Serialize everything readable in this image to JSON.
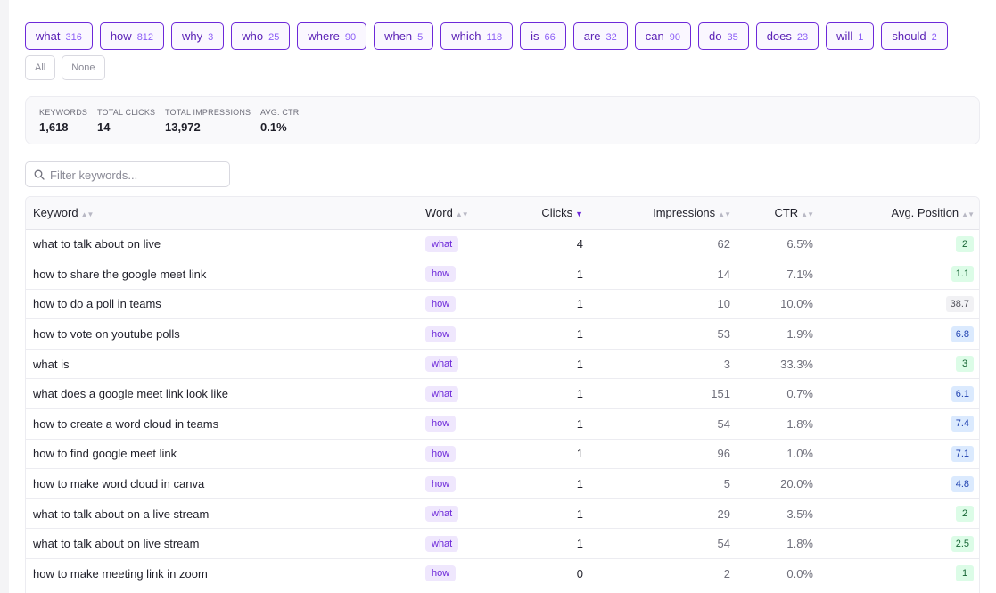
{
  "word_filters": [
    {
      "word": "what",
      "count": "316"
    },
    {
      "word": "how",
      "count": "812"
    },
    {
      "word": "why",
      "count": "3"
    },
    {
      "word": "who",
      "count": "25"
    },
    {
      "word": "where",
      "count": "90"
    },
    {
      "word": "when",
      "count": "5"
    },
    {
      "word": "which",
      "count": "118"
    },
    {
      "word": "is",
      "count": "66"
    },
    {
      "word": "are",
      "count": "32"
    },
    {
      "word": "can",
      "count": "90"
    },
    {
      "word": "do",
      "count": "35"
    },
    {
      "word": "does",
      "count": "23"
    },
    {
      "word": "will",
      "count": "1"
    },
    {
      "word": "should",
      "count": "2"
    }
  ],
  "selection": {
    "all_label": "All",
    "none_label": "None"
  },
  "stats": [
    {
      "label": "Keywords",
      "value": "1,618"
    },
    {
      "label": "Total Clicks",
      "value": "14"
    },
    {
      "label": "Total Impressions",
      "value": "13,972"
    },
    {
      "label": "Avg. CTR",
      "value": "0.1%"
    }
  ],
  "filter": {
    "placeholder": "Filter keywords...",
    "value": ""
  },
  "table": {
    "columns": [
      {
        "label": "Keyword",
        "sorted": false
      },
      {
        "label": "Word",
        "sorted": false
      },
      {
        "label": "Clicks",
        "sorted": true
      },
      {
        "label": "Impressions",
        "sorted": false
      },
      {
        "label": "CTR",
        "sorted": false
      },
      {
        "label": "Avg. Position",
        "sorted": false
      }
    ],
    "rows": [
      {
        "keyword": "what to talk about on live",
        "word": "what",
        "clicks": "4",
        "impressions": "62",
        "ctr": "6.5%",
        "position": "2",
        "position_tone": "green"
      },
      {
        "keyword": "how to share the google meet link",
        "word": "how",
        "clicks": "1",
        "impressions": "14",
        "ctr": "7.1%",
        "position": "1.1",
        "position_tone": "green"
      },
      {
        "keyword": "how to do a poll in teams",
        "word": "how",
        "clicks": "1",
        "impressions": "10",
        "ctr": "10.0%",
        "position": "38.7",
        "position_tone": "gray"
      },
      {
        "keyword": "how to vote on youtube polls",
        "word": "how",
        "clicks": "1",
        "impressions": "53",
        "ctr": "1.9%",
        "position": "6.8",
        "position_tone": "blue"
      },
      {
        "keyword": "what is",
        "word": "what",
        "clicks": "1",
        "impressions": "3",
        "ctr": "33.3%",
        "position": "3",
        "position_tone": "green"
      },
      {
        "keyword": "what does a google meet link look like",
        "word": "what",
        "clicks": "1",
        "impressions": "151",
        "ctr": "0.7%",
        "position": "6.1",
        "position_tone": "blue"
      },
      {
        "keyword": "how to create a word cloud in teams",
        "word": "how",
        "clicks": "1",
        "impressions": "54",
        "ctr": "1.8%",
        "position": "7.4",
        "position_tone": "blue"
      },
      {
        "keyword": "how to find google meet link",
        "word": "how",
        "clicks": "1",
        "impressions": "96",
        "ctr": "1.0%",
        "position": "7.1",
        "position_tone": "blue"
      },
      {
        "keyword": "how to make word cloud in canva",
        "word": "how",
        "clicks": "1",
        "impressions": "5",
        "ctr": "20.0%",
        "position": "4.8",
        "position_tone": "blue"
      },
      {
        "keyword": "what to talk about on a live stream",
        "word": "what",
        "clicks": "1",
        "impressions": "29",
        "ctr": "3.5%",
        "position": "2",
        "position_tone": "green"
      },
      {
        "keyword": "what to talk about on live stream",
        "word": "what",
        "clicks": "1",
        "impressions": "54",
        "ctr": "1.8%",
        "position": "2.5",
        "position_tone": "green"
      },
      {
        "keyword": "how to make meeting link in zoom",
        "word": "how",
        "clicks": "0",
        "impressions": "2",
        "ctr": "0.0%",
        "position": "1",
        "position_tone": "green"
      }
    ]
  }
}
